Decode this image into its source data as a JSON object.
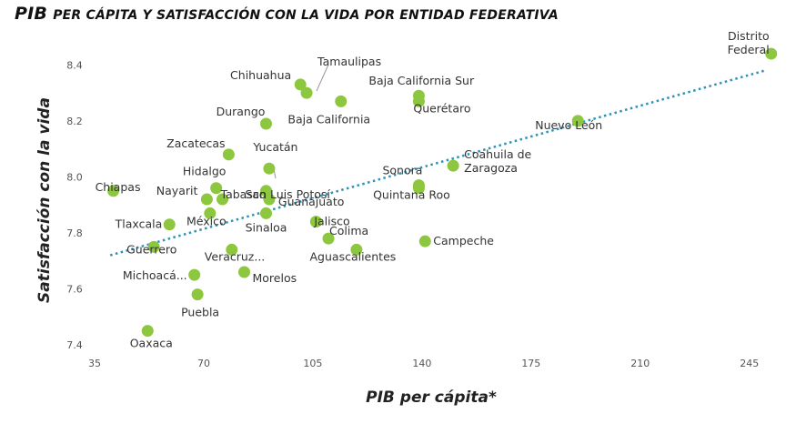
{
  "chart_data": {
    "type": "scatter",
    "title_lead": "PIB",
    "title_rest": "PER CÁPITA Y SATISFACCIÓN CON LA VIDA POR ENTIDAD FEDERATIVA",
    "xlabel": "PIB per cápita*",
    "ylabel": "Satisfacción con la vida",
    "xlim": [
      35,
      255
    ],
    "ylim": [
      7.4,
      8.45
    ],
    "xticks": [
      35,
      70,
      105,
      140,
      175,
      210,
      245
    ],
    "yticks": [
      "7.4",
      "7.6",
      "7.8",
      "8.0",
      "8.2",
      "8.4"
    ],
    "marker_color": "#8dc63f",
    "trend_color": "#2a93b8",
    "trendline": {
      "x": [
        40,
        250
      ],
      "y": [
        7.72,
        8.38
      ]
    },
    "points": [
      {
        "name": "Distrito Federal",
        "x": 252,
        "y": 8.44
      },
      {
        "name": "Nuevo León",
        "x": 190,
        "y": 8.2
      },
      {
        "name": "Tamaulipas",
        "x": 103,
        "y": 8.3
      },
      {
        "name": "Chihuahua",
        "x": 101,
        "y": 8.33
      },
      {
        "name": "Baja California",
        "x": 114,
        "y": 8.27
      },
      {
        "name": "Baja California Sur",
        "x": 139,
        "y": 8.29
      },
      {
        "name": "Querétaro",
        "x": 139,
        "y": 8.27
      },
      {
        "name": "Durango",
        "x": 90,
        "y": 8.19
      },
      {
        "name": "Zacatecas",
        "x": 78,
        "y": 8.08
      },
      {
        "name": "Yucatán",
        "x": 91,
        "y": 8.03
      },
      {
        "name": "Coahuila de Zaragoza",
        "x": 150,
        "y": 8.04
      },
      {
        "name": "Sonora",
        "x": 139,
        "y": 7.97
      },
      {
        "name": "Quintana Roo",
        "x": 139,
        "y": 7.96
      },
      {
        "name": "Chiapas",
        "x": 41,
        "y": 7.95
      },
      {
        "name": "Hidalgo",
        "x": 74,
        "y": 7.96
      },
      {
        "name": "Nayarit",
        "x": 71,
        "y": 7.92
      },
      {
        "name": "Tabasco",
        "x": 76,
        "y": 7.92
      },
      {
        "name": "San Luis Potosí",
        "x": 90,
        "y": 7.95
      },
      {
        "name": "Guanajuato",
        "x": 91,
        "y": 7.92
      },
      {
        "name": "México",
        "x": 72,
        "y": 7.87
      },
      {
        "name": "Sinaloa",
        "x": 90,
        "y": 7.87
      },
      {
        "name": "Tlaxcala",
        "x": 59,
        "y": 7.83
      },
      {
        "name": "Jalisco",
        "x": 106,
        "y": 7.84
      },
      {
        "name": "Colima",
        "x": 110,
        "y": 7.78
      },
      {
        "name": "Campeche",
        "x": 141,
        "y": 7.77
      },
      {
        "name": "Guerrero",
        "x": 54,
        "y": 7.75
      },
      {
        "name": "Veracruz...",
        "x": 79,
        "y": 7.74
      },
      {
        "name": "Aguascalientes",
        "x": 119,
        "y": 7.74
      },
      {
        "name": "Michoacá...",
        "x": 67,
        "y": 7.65
      },
      {
        "name": "Morelos",
        "x": 83,
        "y": 7.66
      },
      {
        "name": "Puebla",
        "x": 68,
        "y": 7.58
      },
      {
        "name": "Oaxaca",
        "x": 52,
        "y": 7.45
      }
    ]
  }
}
